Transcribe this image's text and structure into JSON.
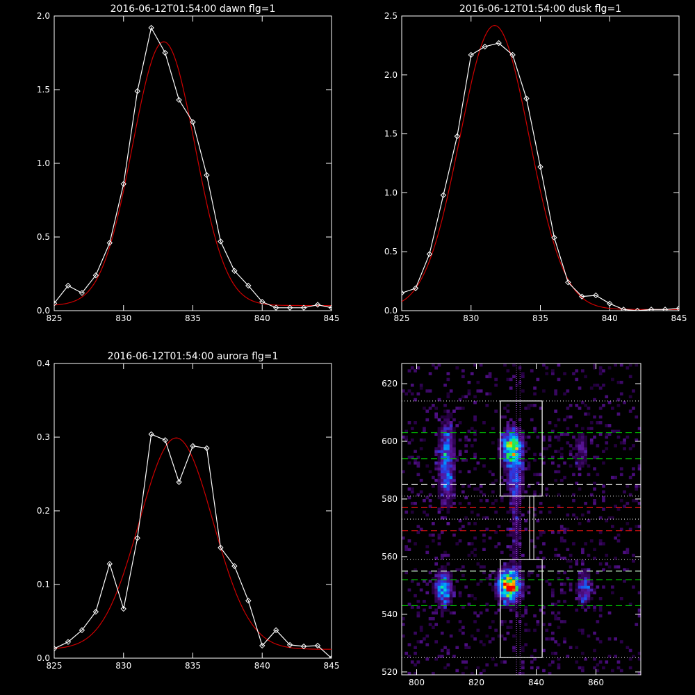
{
  "colors": {
    "background": "#000000",
    "axes": "#ffffff",
    "data_line": "#ffffff",
    "fit_line": "#d00000",
    "green_dashes": "#00c800",
    "red_dashes": "#d01010",
    "white_dashes": "#ffffff",
    "dotted_lines": "#e0e0e0",
    "center_dotted": "#c060ff"
  },
  "chart_data": [
    {
      "type": "line",
      "title": "2016-06-12T01:54:00 dawn flg=1",
      "xlim": [
        825,
        845
      ],
      "ylim": [
        0,
        2.0
      ],
      "xticks": [
        "825",
        "830",
        "835",
        "840",
        "845"
      ],
      "yticks": [
        "0.0",
        "0.5",
        "1.0",
        "1.5",
        "2.0"
      ],
      "series": [
        {
          "kind": "data",
          "marker": "diamond",
          "x": [
            825,
            826,
            827,
            828,
            829,
            830,
            831,
            832,
            833,
            834,
            835,
            836,
            837,
            838,
            839,
            840,
            841,
            842,
            843,
            844,
            845
          ],
          "y": [
            0.05,
            0.17,
            0.12,
            0.24,
            0.46,
            0.86,
            1.49,
            1.92,
            1.75,
            1.43,
            1.28,
            0.92,
            0.47,
            0.27,
            0.17,
            0.06,
            0.02,
            0.02,
            0.02,
            0.04,
            0.02
          ]
        },
        {
          "kind": "fit",
          "gaussian": {
            "amplitude": 1.79,
            "center": 832.9,
            "sigma": 2.25,
            "baseline": 0.035
          }
        }
      ]
    },
    {
      "type": "line",
      "title": "2016-06-12T01:54:00 dusk flg=1",
      "xlim": [
        825,
        845
      ],
      "ylim": [
        0,
        2.5
      ],
      "xticks": [
        "825",
        "830",
        "835",
        "840",
        "845"
      ],
      "yticks": [
        "0.0",
        "0.5",
        "1.0",
        "1.5",
        "2.0",
        "2.5"
      ],
      "series": [
        {
          "kind": "data",
          "marker": "diamond",
          "x": [
            825,
            826,
            827,
            828,
            829,
            830,
            831,
            832,
            833,
            834,
            835,
            836,
            837,
            838,
            839,
            840,
            841,
            842,
            843,
            844,
            845
          ],
          "y": [
            0.15,
            0.19,
            0.48,
            0.98,
            1.48,
            2.17,
            2.24,
            2.27,
            2.17,
            1.8,
            1.22,
            0.62,
            0.24,
            0.12,
            0.13,
            0.06,
            0.01,
            0.0,
            0.01,
            0.01,
            0.02
          ]
        },
        {
          "kind": "fit",
          "gaussian": {
            "amplitude": 2.41,
            "center": 831.7,
            "sigma": 2.5,
            "baseline": 0.01
          }
        }
      ]
    },
    {
      "type": "line",
      "title": "2016-06-12T01:54:00 aurora flg=1",
      "xlim": [
        825,
        845
      ],
      "ylim": [
        0,
        0.4
      ],
      "xticks": [
        "825",
        "830",
        "835",
        "840",
        "845"
      ],
      "yticks": [
        "0.0",
        "0.1",
        "0.2",
        "0.3",
        "0.4"
      ],
      "series": [
        {
          "kind": "data",
          "marker": "diamond",
          "x": [
            825,
            826,
            827,
            828,
            829,
            830,
            831,
            832,
            833,
            834,
            835,
            836,
            837,
            838,
            839,
            840,
            841,
            842,
            843,
            844,
            845
          ],
          "y": [
            0.013,
            0.022,
            0.038,
            0.063,
            0.128,
            0.067,
            0.163,
            0.304,
            0.296,
            0.239,
            0.288,
            0.285,
            0.15,
            0.125,
            0.078,
            0.017,
            0.038,
            0.018,
            0.016,
            0.017,
            0.0
          ]
        },
        {
          "kind": "fit",
          "gaussian": {
            "amplitude": 0.287,
            "center": 833.8,
            "sigma": 2.65,
            "baseline": 0.012
          }
        }
      ]
    },
    {
      "type": "heatmap",
      "title": "",
      "xlim": [
        795,
        875
      ],
      "ylim": [
        519,
        627
      ],
      "xticks": [
        "800",
        "820",
        "840",
        "860"
      ],
      "yticks": [
        "520",
        "540",
        "560",
        "580",
        "600",
        "620"
      ],
      "blobs": [
        {
          "x": 810,
          "y": 593,
          "sx": 1.8,
          "sy": 9,
          "amp": 0.42
        },
        {
          "x": 809,
          "y": 549,
          "sx": 1.8,
          "sy": 4,
          "amp": 0.52
        },
        {
          "x": 832,
          "y": 598,
          "sx": 2.2,
          "sy": 4,
          "amp": 0.75
        },
        {
          "x": 833,
          "y": 587,
          "sx": 1.8,
          "sy": 5,
          "amp": 0.32
        },
        {
          "x": 831,
          "y": 550,
          "sx": 2.4,
          "sy": 3.5,
          "amp": 0.95
        },
        {
          "x": 833,
          "y": 568,
          "sx": 1.5,
          "sy": 8,
          "amp": 0.16
        },
        {
          "x": 856,
          "y": 549,
          "sx": 1.6,
          "sy": 4,
          "amp": 0.32
        },
        {
          "x": 855,
          "y": 597,
          "sx": 1.6,
          "sy": 5,
          "amp": 0.18
        }
      ],
      "boxes": [
        {
          "x0": 828,
          "x1": 842,
          "y0": 581,
          "y1": 614
        },
        {
          "x0": 828,
          "x1": 842,
          "y0": 525,
          "y1": 559
        }
      ],
      "center_x": 834,
      "center_lines_x": [
        833.4,
        834.6
      ],
      "green_dashed_y": [
        603,
        594,
        555,
        552,
        543
      ],
      "white_dashed_y": [
        585,
        555
      ],
      "red_dashed_y": [
        577,
        569
      ],
      "dotted_y": [
        614,
        581,
        573,
        559,
        525
      ]
    }
  ]
}
